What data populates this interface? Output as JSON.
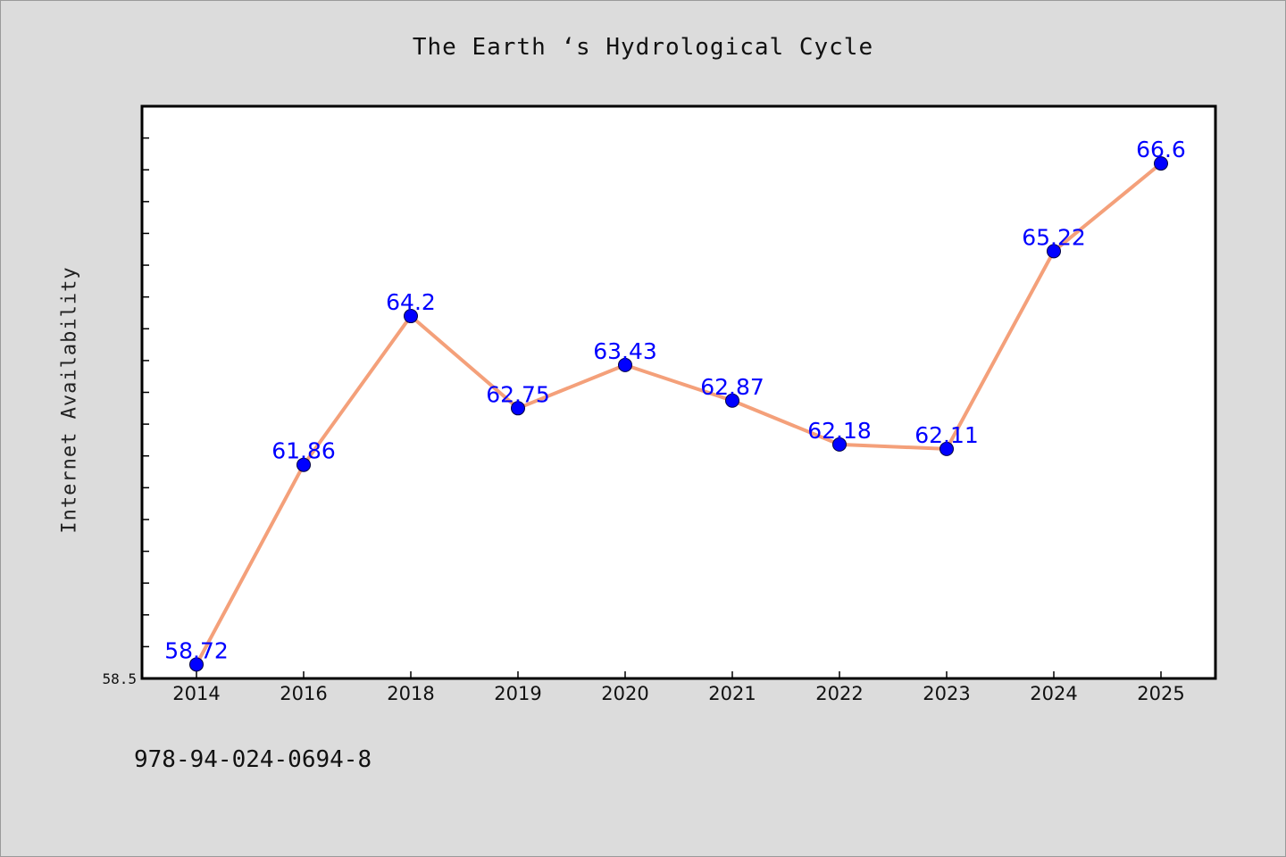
{
  "chart_data": {
    "type": "line",
    "title": "The Earth ‘s Hydrological Cycle",
    "xlabel": "",
    "ylabel": "Internet Availability",
    "categories": [
      "2014",
      "2016",
      "2018",
      "2019",
      "2020",
      "2021",
      "2022",
      "2023",
      "2024",
      "2025"
    ],
    "series": [
      {
        "values": [
          58.72,
          61.86,
          64.2,
          62.75,
          63.43,
          62.87,
          62.18,
          62.11,
          65.22,
          66.6
        ],
        "labels": [
          "58.72",
          "61.86",
          "64.2",
          "62.75",
          "63.43",
          "62.87",
          "62.18",
          "62.11",
          "65.22",
          "66.6"
        ]
      }
    ],
    "ylim": [
      58.5,
      67.5
    ],
    "y_tick_labels": [
      "58.5"
    ],
    "grid": false,
    "legend": "none",
    "line_color": "#f4a07a",
    "marker_color": "#0000ff",
    "label_color": "#0000ff"
  },
  "footer": {
    "isbn": "978-94-024-0694-8"
  }
}
